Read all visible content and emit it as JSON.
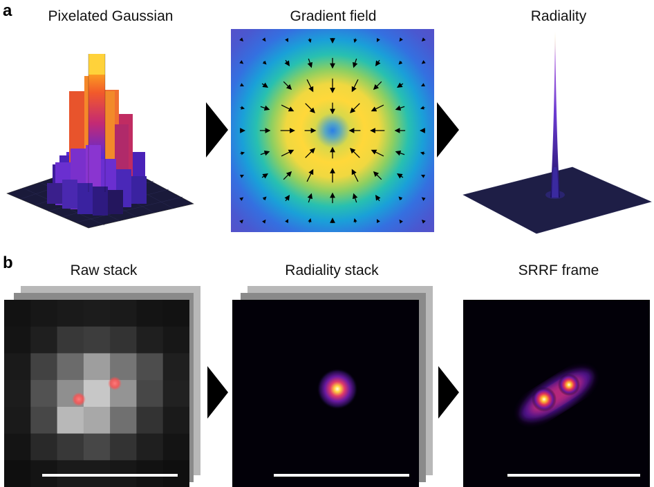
{
  "panel_a": {
    "label": "a",
    "titles": {
      "pixelated_gaussian": "Pixelated Gaussian",
      "gradient_field": "Gradient field",
      "radiality": "Radiality"
    }
  },
  "panel_b": {
    "label": "b",
    "titles": {
      "raw_stack": "Raw stack",
      "radiality_stack": "Radiality stack",
      "srrf_frame": "SRRF frame"
    }
  },
  "colors": {
    "arrow": "#000000",
    "scale_bar": "#ffffff",
    "emitter": "#ff5a5a"
  },
  "raw_pixels": [
    [
      0.07,
      0.09,
      0.1,
      0.11,
      0.1,
      0.08,
      0.07
    ],
    [
      0.08,
      0.12,
      0.22,
      0.24,
      0.2,
      0.12,
      0.09
    ],
    [
      0.1,
      0.26,
      0.42,
      0.62,
      0.46,
      0.3,
      0.12
    ],
    [
      0.11,
      0.32,
      0.56,
      0.78,
      0.58,
      0.28,
      0.13
    ],
    [
      0.1,
      0.28,
      0.72,
      0.66,
      0.44,
      0.2,
      0.1
    ],
    [
      0.08,
      0.16,
      0.22,
      0.28,
      0.2,
      0.12,
      0.08
    ],
    [
      0.06,
      0.08,
      0.1,
      0.1,
      0.09,
      0.07,
      0.06
    ]
  ]
}
